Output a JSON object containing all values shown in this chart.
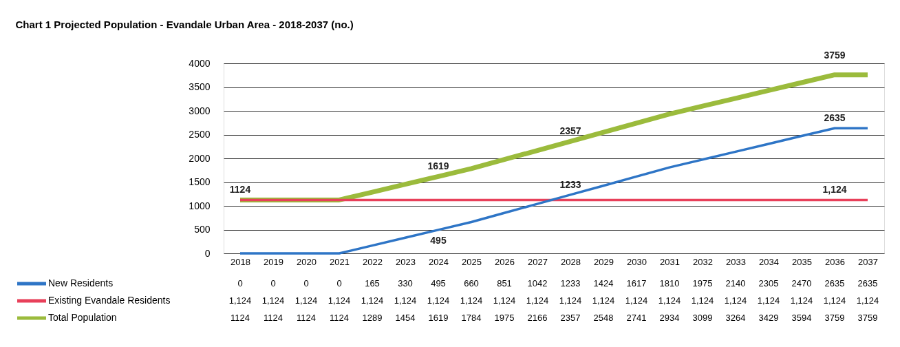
{
  "chart_data": {
    "type": "line",
    "title": "Chart 1 Projected Population - Evandale Urban Area - 2018-2037 (no.)",
    "categories": [
      "2018",
      "2019",
      "2020",
      "2021",
      "2022",
      "2023",
      "2024",
      "2025",
      "2026",
      "2027",
      "2028",
      "2029",
      "2030",
      "2031",
      "2032",
      "2033",
      "2034",
      "2035",
      "2036",
      "2037"
    ],
    "series": [
      {
        "name": "New Residents",
        "color": "#2e75c6",
        "values": [
          0,
          0,
          0,
          0,
          165,
          330,
          495,
          660,
          851,
          1042,
          1233,
          1424,
          1617,
          1810,
          1975,
          2140,
          2305,
          2470,
          2635,
          2635
        ]
      },
      {
        "name": "Existing Evandale Residents",
        "color": "#e8405a",
        "values": [
          1124,
          1124,
          1124,
          1124,
          1124,
          1124,
          1124,
          1124,
          1124,
          1124,
          1124,
          1124,
          1124,
          1124,
          1124,
          1124,
          1124,
          1124,
          1124,
          1124
        ],
        "value_labels": [
          "1,124",
          "1,124",
          "1,124",
          "1,124",
          "1,124",
          "1,124",
          "1,124",
          "1,124",
          "1,124",
          "1,124",
          "1,124",
          "1,124",
          "1,124",
          "1,124",
          "1,124",
          "1,124",
          "1,124",
          "1,124",
          "1,124",
          "1,124"
        ]
      },
      {
        "name": "Total Population",
        "color": "#9bbb3c",
        "values": [
          1124,
          1124,
          1124,
          1124,
          1289,
          1454,
          1619,
          1784,
          1975,
          2166,
          2357,
          2548,
          2741,
          2934,
          3099,
          3264,
          3429,
          3594,
          3759,
          3759
        ]
      }
    ],
    "ylim": [
      0,
      4000
    ],
    "yticks": [
      0,
      500,
      1000,
      1500,
      2000,
      2500,
      3000,
      3500,
      4000
    ],
    "grid": "y",
    "legend": "bottom left",
    "marker": "none",
    "line_style": "solid",
    "data_labels": true,
    "annotations": [
      {
        "text": "1124",
        "x": "2018",
        "y": 1124
      },
      {
        "text": "1619",
        "x": "2024",
        "y": 1619
      },
      {
        "text": "2357",
        "x": "2028",
        "y": 2357
      },
      {
        "text": "3759",
        "x": "2036",
        "y": 3759
      },
      {
        "text": "495",
        "x": "2024",
        "y": 495
      },
      {
        "text": "1233",
        "x": "2028",
        "y": 1233
      },
      {
        "text": "2635",
        "x": "2036",
        "y": 2635
      },
      {
        "text": "1,124",
        "x": "2036",
        "y": 1124
      }
    ]
  }
}
